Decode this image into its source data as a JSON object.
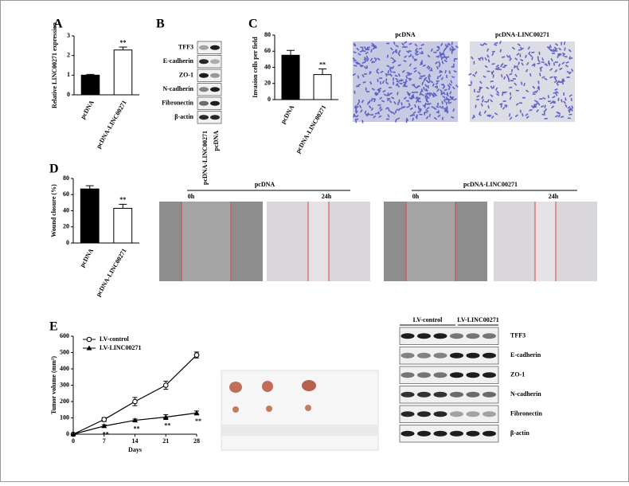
{
  "panels": [
    "A",
    "B",
    "C",
    "D",
    "E"
  ],
  "chart_data": [
    {
      "type": "bar",
      "categories": [
        "pcDNA",
        "pcDNA-LINC00271"
      ],
      "values": [
        1.0,
        2.28
      ],
      "errors": [
        0.04,
        0.15
      ],
      "colors": [
        "#000000",
        "#ffffff"
      ],
      "ylabel": "Relative LINC00271 expression",
      "ylim": [
        0,
        3
      ],
      "yticks": [
        0,
        1,
        2,
        3
      ],
      "annotations": [
        {
          "category": "pcDNA-LINC00271",
          "text": "**"
        }
      ]
    },
    {
      "type": "bar",
      "categories": [
        "pcDNA",
        "pcDNA-LINC00271"
      ],
      "values": [
        55,
        31
      ],
      "errors": [
        6,
        7
      ],
      "colors": [
        "#000000",
        "#ffffff"
      ],
      "ylabel": "Invasion cells per field",
      "ylim": [
        0,
        80
      ],
      "yticks": [
        0,
        20,
        40,
        60,
        80
      ],
      "annotations": [
        {
          "category": "pcDNA-LINC00271",
          "text": "**"
        }
      ]
    },
    {
      "type": "bar",
      "categories": [
        "pcDNA",
        "pcDNA-LINC00271"
      ],
      "values": [
        67,
        43
      ],
      "errors": [
        4,
        5
      ],
      "colors": [
        "#000000",
        "#ffffff"
      ],
      "ylabel": "Wound closure (%)",
      "ylim": [
        0,
        80
      ],
      "yticks": [
        0,
        20,
        40,
        60,
        80
      ],
      "annotations": [
        {
          "category": "pcDNA-LINC00271",
          "text": "**"
        }
      ]
    },
    {
      "type": "line",
      "x": [
        0,
        7,
        14,
        21,
        28
      ],
      "xlabel": "Days",
      "ylabel": "Tumor volume (mm³)",
      "xlim": [
        0,
        28
      ],
      "xticks": [
        0,
        7,
        14,
        21,
        28
      ],
      "ylim": [
        0,
        600
      ],
      "yticks": [
        0,
        100,
        200,
        300,
        400,
        500,
        600
      ],
      "legend": "upper left",
      "series": [
        {
          "name": "LV-control",
          "color": "#000000",
          "marker": "circle",
          "values": [
            0,
            90,
            200,
            300,
            485
          ],
          "errors": [
            0,
            12,
            25,
            25,
            18
          ]
        },
        {
          "name": "LV-LINC00271",
          "color": "#000000",
          "marker": "triangle",
          "values": [
            0,
            50,
            85,
            105,
            130
          ],
          "errors": [
            0,
            8,
            8,
            15,
            12
          ]
        }
      ],
      "annotations": [
        {
          "x": 7,
          "text": "**"
        },
        {
          "x": 14,
          "text": "**"
        },
        {
          "x": 21,
          "text": "**"
        },
        {
          "x": 28,
          "text": "**"
        }
      ]
    }
  ],
  "blots": [
    {
      "proteins": [
        "TFF3",
        "E-cadherin",
        "ZO-1",
        "N-cadherin",
        "Fibronectin",
        "β-actin"
      ],
      "lanes": [
        "pcDNA-LINC00271",
        "pcDNA"
      ]
    },
    {
      "proteins": [
        "TFF3",
        "E-cadherin",
        "ZO-1",
        "N-cadherin",
        "Fibronectin",
        "β-actin"
      ],
      "groups": [
        "LV-control",
        "LV-LINC00271"
      ]
    }
  ],
  "photos": {
    "invasion": [
      "pcDNA",
      "pcDNA-LINC00271"
    ],
    "wound": {
      "groups": [
        "pcDNA",
        "pcDNA-LINC00271"
      ],
      "times": [
        "0h",
        "24h"
      ]
    }
  }
}
